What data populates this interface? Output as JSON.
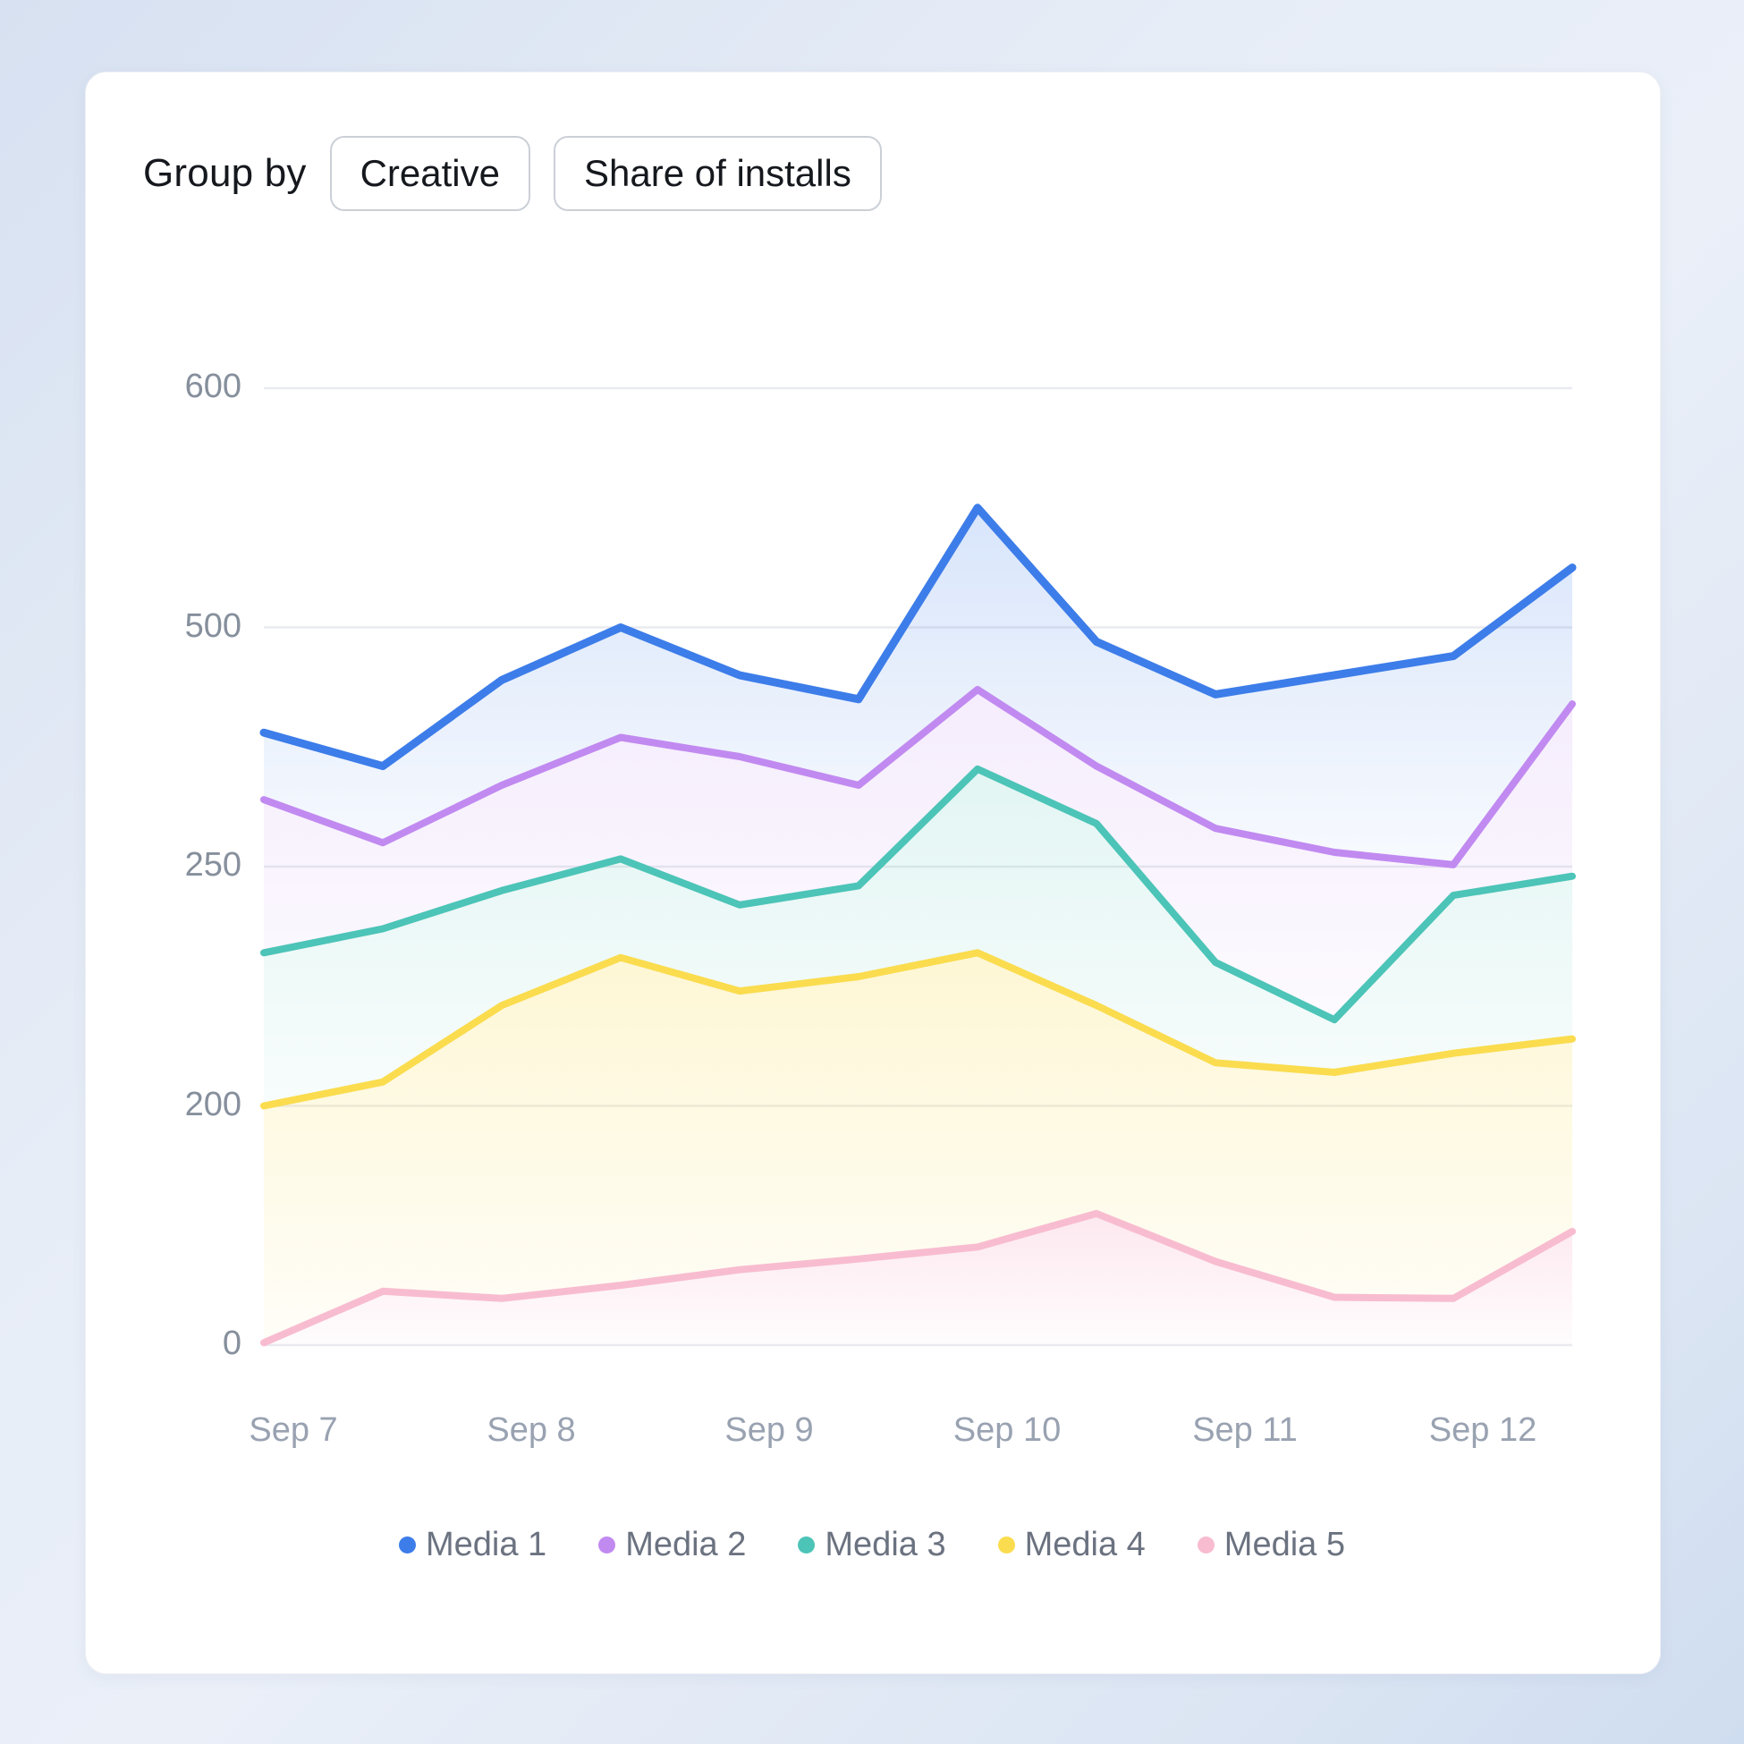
{
  "header": {
    "group_by_label": "Group by",
    "buttons": [
      {
        "label": "Creative"
      },
      {
        "label": "Share of installs"
      }
    ]
  },
  "chart_data": {
    "type": "area",
    "title": "",
    "xlabel": "",
    "ylabel": "",
    "grid": true,
    "legend_position": "bottom",
    "x_tick_labels": [
      "Sep 7",
      "Sep 8",
      "Sep 9",
      "Sep 10",
      "Sep 11",
      "Sep 12"
    ],
    "x_label_point_indices": [
      0,
      2,
      4,
      6,
      8,
      10
    ],
    "points_per_series": 12,
    "y_tick_labels": [
      "600",
      "500",
      "250",
      "200",
      "0"
    ],
    "y_tick_values": [
      600,
      500,
      250,
      200,
      0
    ],
    "gridline_color": "#e9ebef",
    "series": [
      {
        "name": "Media 1",
        "color": "#3D7DE9",
        "fill_tint_opacity": 0.2,
        "values": [
          390,
          355,
          445,
          500,
          450,
          425,
          550,
          485,
          430,
          450,
          470,
          525
        ]
      },
      {
        "name": "Media 2",
        "color": "#C18AF0",
        "fill_tint_opacity": 0.16,
        "values": [
          320,
          275,
          335,
          385,
          365,
          335,
          435,
          355,
          290,
          265,
          252,
          420
        ]
      },
      {
        "name": "Media 3",
        "color": "#4CC4B7",
        "fill_tint_opacity": 0.16,
        "values": [
          232,
          237,
          245,
          258,
          242,
          246,
          352,
          295,
          230,
          218,
          244,
          248
        ]
      },
      {
        "name": "Media 4",
        "color": "#FADC4E",
        "fill_tint_opacity": 0.24,
        "values": [
          200,
          205,
          221,
          231,
          224,
          227,
          232,
          221,
          209,
          207,
          211,
          214
        ]
      },
      {
        "name": "Media 5",
        "color": "#F8BCD0",
        "fill_tint_opacity": 0.34,
        "values": [
          2,
          45,
          39,
          50,
          63,
          72,
          82,
          110,
          70,
          40,
          39,
          95
        ]
      }
    ]
  }
}
